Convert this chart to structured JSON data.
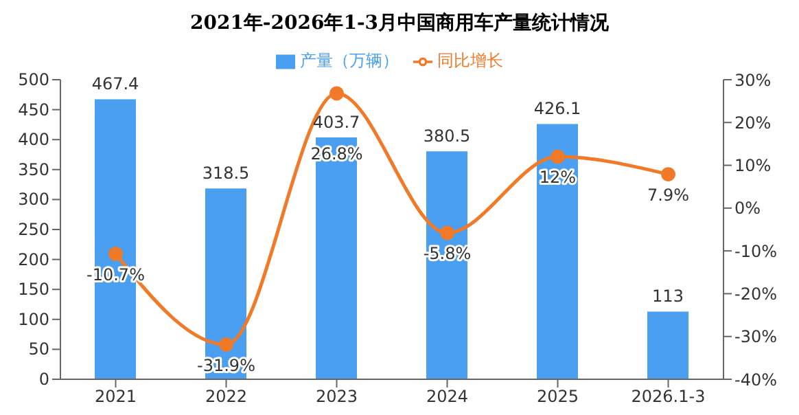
{
  "chart_data": {
    "type": "bar",
    "title": "2021年-2026年1-3月中国商用车产量统计情况",
    "categories": [
      "2021",
      "2022",
      "2023",
      "2024",
      "2025",
      "2026.1-3"
    ],
    "series": [
      {
        "name": "产量（万辆）",
        "color": "#4a9ff0",
        "values": [
          467.4,
          318.5,
          403.7,
          380.5,
          426.1,
          113
        ],
        "value_labels": [
          "467.4",
          "318.5",
          "403.7",
          "380.5",
          "426.1",
          "113"
        ]
      },
      {
        "name": "同比增长",
        "type": "line",
        "axis": "y2",
        "color": "#f07a28",
        "values": [
          -10.7,
          -31.9,
          26.8,
          -5.8,
          12,
          7.9
        ],
        "value_labels": [
          "-10.7%",
          "-31.9%",
          "26.8%",
          "-5.8%",
          "12%",
          "7.9%"
        ]
      }
    ],
    "ylim": [
      0,
      500
    ],
    "yticks": [
      0,
      50,
      100,
      150,
      200,
      250,
      300,
      350,
      400,
      450,
      500
    ],
    "y2lim": [
      -40,
      30
    ],
    "y2ticks": [
      {
        "value": -40,
        "label": "-40%"
      },
      {
        "value": -30,
        "label": "-30%"
      },
      {
        "value": -20,
        "label": "-20%"
      },
      {
        "value": -10,
        "label": "-10%"
      },
      {
        "value": 0,
        "label": "0%"
      },
      {
        "value": 10,
        "label": "10%"
      },
      {
        "value": 20,
        "label": "20%"
      },
      {
        "value": 30,
        "label": "30%"
      }
    ],
    "legend": "top",
    "grid": false,
    "marker": "circle",
    "line_style": "solid"
  }
}
